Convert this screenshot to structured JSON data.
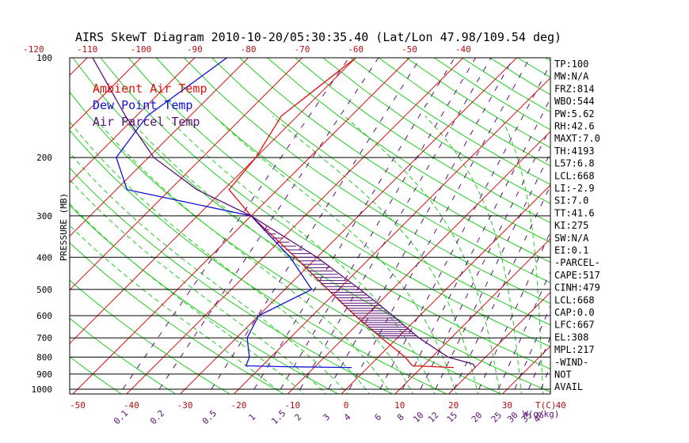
{
  "chart_data": {
    "type": "line",
    "title": "AIRS SkewT Diagram 2010-10-20/05:30:35.40 (Lat/Lon 47.98/109.54 deg)",
    "ylabel": "PRESSURE (MB)",
    "xlabel_right": "T(C)",
    "mix_label": "W(g/kg)",
    "pressure_levels": [
      "100",
      "200",
      "300",
      "400",
      "500",
      "600",
      "700",
      "800",
      "900",
      "1000"
    ],
    "top_temp_ticks": [
      "-120",
      "-110",
      "-100",
      "-90",
      "-80",
      "-70",
      "-60",
      "-50",
      "-40"
    ],
    "bottom_temp_ticks": [
      "-50",
      "-40",
      "-30",
      "-20",
      "-10",
      "0",
      "10",
      "20",
      "30",
      "40"
    ],
    "mixing_ratio_ticks": [
      "0.1",
      "0.2",
      "0.5",
      "1",
      "1.5",
      "2",
      "3",
      "4",
      "6",
      "8",
      "10",
      "12",
      "15",
      "20",
      "25",
      "30",
      "35",
      "40"
    ],
    "legend": [
      {
        "label": "Ambient Air Temp",
        "color": "#e01010"
      },
      {
        "label": "Dew Point Temp",
        "color": "#1010d8"
      },
      {
        "label": "Air Parcel Temp",
        "color": "#5a1075"
      }
    ],
    "series": [
      {
        "name": "Ambient Air Temp",
        "color": "#e01010",
        "points": [
          [
            100,
            -60
          ],
          [
            150,
            -63
          ],
          [
            200,
            -60
          ],
          [
            250,
            -59
          ],
          [
            300,
            -50
          ],
          [
            400,
            -34
          ],
          [
            500,
            -22
          ],
          [
            600,
            -12
          ],
          [
            700,
            -3
          ],
          [
            800,
            5
          ],
          [
            850,
            8
          ],
          [
            860,
            16
          ]
        ]
      },
      {
        "name": "Dew Point Temp",
        "color": "#1010d8",
        "points": [
          [
            100,
            -84
          ],
          [
            150,
            -88
          ],
          [
            200,
            -86
          ],
          [
            250,
            -78
          ],
          [
            300,
            -50
          ],
          [
            400,
            -35
          ],
          [
            500,
            -25
          ],
          [
            600,
            -30
          ],
          [
            700,
            -28
          ],
          [
            800,
            -24
          ],
          [
            850,
            -23
          ],
          [
            855,
            -16
          ],
          [
            858,
            -9
          ],
          [
            860,
            -3
          ]
        ]
      },
      {
        "name": "Air Parcel Temp",
        "color": "#5a1075",
        "points": [
          [
            100,
            -109
          ],
          [
            150,
            -92
          ],
          [
            200,
            -79
          ],
          [
            250,
            -65
          ],
          [
            300,
            -50
          ],
          [
            400,
            -30
          ],
          [
            500,
            -16
          ],
          [
            600,
            -5
          ],
          [
            700,
            4
          ],
          [
            800,
            13
          ],
          [
            840,
            19
          ],
          [
            860,
            20
          ]
        ]
      }
    ],
    "indices": [
      "TP:100",
      "MW:N/A",
      "FRZ:814",
      "WBO:544",
      "PW:5.62",
      "RH:42.6",
      "MAXT:7.0",
      "TH:4193",
      "L57:6.8",
      "LCL:668",
      "LI:-2.9",
      "SI:7.0",
      "TT:41.6",
      "KI:275",
      "SW:N/A",
      "EI:0.1",
      "-PARCEL-",
      "CAPE:517",
      "CINH:479",
      "LCL:668",
      "CAP:0.0",
      "LFC:667",
      "EL:308",
      "MPL:217",
      "-WIND-",
      "NOT",
      "AVAIL"
    ]
  }
}
